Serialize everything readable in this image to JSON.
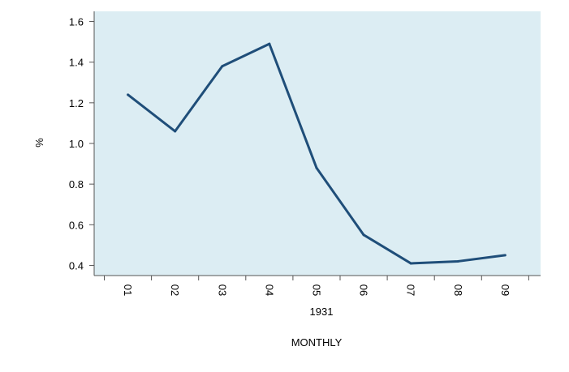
{
  "chart_data": {
    "type": "line",
    "x": [
      "01",
      "02",
      "03",
      "04",
      "05",
      "06",
      "07",
      "08",
      "09"
    ],
    "series": [
      {
        "values": [
          1.24,
          1.06,
          1.38,
          1.49,
          0.88,
          0.55,
          0.41,
          0.42,
          0.45
        ]
      }
    ],
    "ylabel": "%",
    "year_label": "1931",
    "xlabel": "MONTHLY",
    "ylim": [
      0.35,
      1.65
    ],
    "yticks": [
      "0.4",
      "0.6",
      "0.8",
      "1.0",
      "1.2",
      "1.4",
      "1.6"
    ],
    "grid": false,
    "legend": "none",
    "colors": {
      "line": "#1f4e79",
      "plot_background": "#dcedf3",
      "axis": "#555555"
    }
  }
}
